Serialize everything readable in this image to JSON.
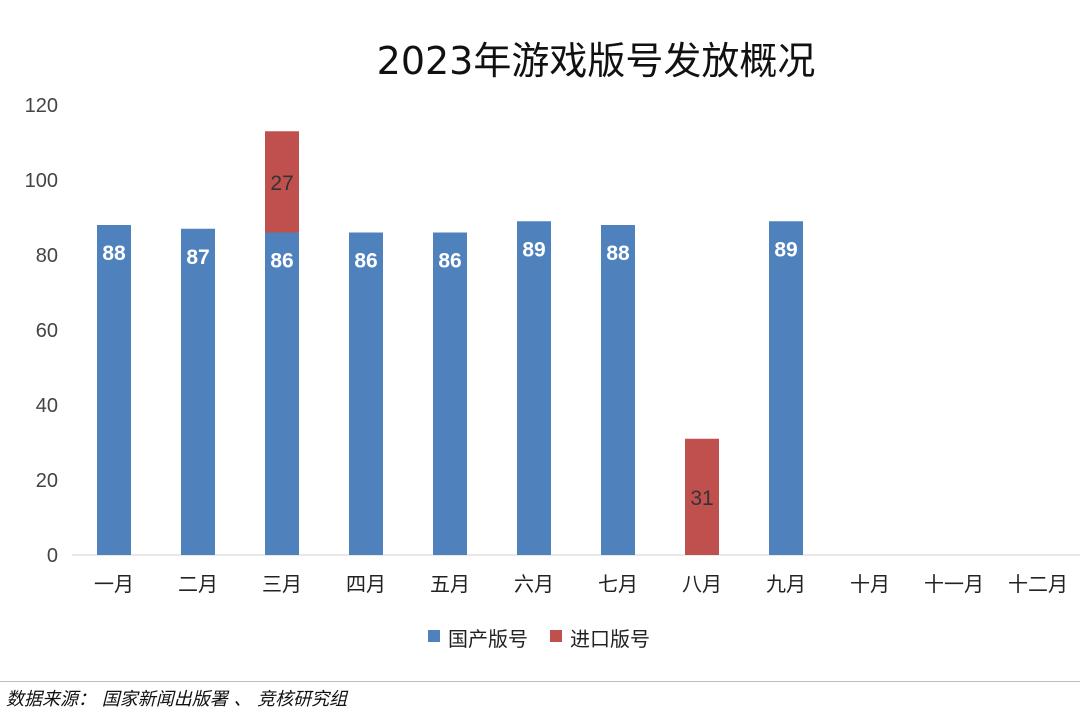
{
  "chart_data": {
    "type": "bar",
    "stacked": true,
    "title": "2023年游戏版号发放概况",
    "categories": [
      "一月",
      "二月",
      "三月",
      "四月",
      "五月",
      "六月",
      "七月",
      "八月",
      "九月",
      "十月",
      "十一月",
      "十二月"
    ],
    "series": [
      {
        "name": "国产版号",
        "color": "#4f81bd",
        "values": [
          88,
          87,
          86,
          86,
          86,
          89,
          88,
          null,
          89,
          null,
          null,
          null
        ]
      },
      {
        "name": "进口版号",
        "color": "#c0504d",
        "values": [
          null,
          null,
          27,
          null,
          null,
          null,
          null,
          31,
          null,
          null,
          null,
          null
        ]
      }
    ],
    "ylim": [
      0,
      120
    ],
    "yticks": [
      0,
      20,
      40,
      60,
      80,
      100,
      120
    ],
    "legend_position": "bottom",
    "grid": false
  },
  "footer": {
    "source": "数据来源： 国家新闻出版署 、 竞核研究组"
  }
}
